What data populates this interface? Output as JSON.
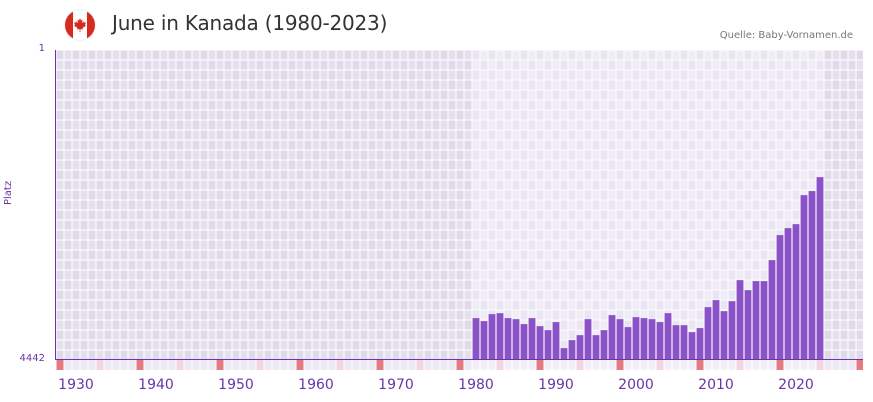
{
  "header": {
    "title": "June in Kanada (1980-2023)",
    "source": "Quelle: Baby-Vornamen.de",
    "flag_icon": "canada-flag-icon"
  },
  "colors": {
    "bar": "#8b52c8",
    "axis": "#6a35a8",
    "plot_bg_outside": "#e6e0ee",
    "plot_bg_range": "#f1edf8",
    "decade_marker": "#e57a80",
    "mid_marker": "#f5d6e0"
  },
  "chart_data": {
    "type": "bar",
    "title": "June in Kanada (1980-2023)",
    "xlabel": "",
    "ylabel": "Platz",
    "y_inverted": true,
    "ylim": [
      4442,
      1
    ],
    "ytick_labels": [
      "1",
      "4442"
    ],
    "xlim": [
      1928,
      2028
    ],
    "xtick_labels": [
      "1930",
      "1940",
      "1950",
      "1960",
      "1970",
      "1980",
      "1990",
      "2000",
      "2010",
      "2020"
    ],
    "highlight_range": [
      1980,
      2023
    ],
    "grid": true,
    "legend": null,
    "categories": [
      1980,
      1981,
      1982,
      1983,
      1984,
      1985,
      1986,
      1987,
      1988,
      1989,
      1990,
      1991,
      1992,
      1993,
      1994,
      1995,
      1996,
      1997,
      1998,
      1999,
      2000,
      2001,
      2002,
      2003,
      2004,
      2005,
      2006,
      2007,
      2008,
      2009,
      2010,
      2011,
      2012,
      2013,
      2014,
      2015,
      2016,
      2017,
      2018,
      2019,
      2020,
      2021,
      2022,
      2023
    ],
    "values": [
      3842,
      3885,
      3785,
      3771,
      3842,
      3857,
      3928,
      3842,
      3957,
      4014,
      3899,
      4272,
      4157,
      4086,
      3857,
      4086,
      4014,
      3799,
      3857,
      3971,
      3828,
      3842,
      3857,
      3899,
      3771,
      3943,
      3943,
      4043,
      3985,
      3685,
      3584,
      3742,
      3599,
      3298,
      3441,
      3312,
      3312,
      3011,
      2653,
      2553,
      2496,
      2080,
      2022,
      1822
    ],
    "source": "Quelle: Baby-Vornamen.de"
  }
}
